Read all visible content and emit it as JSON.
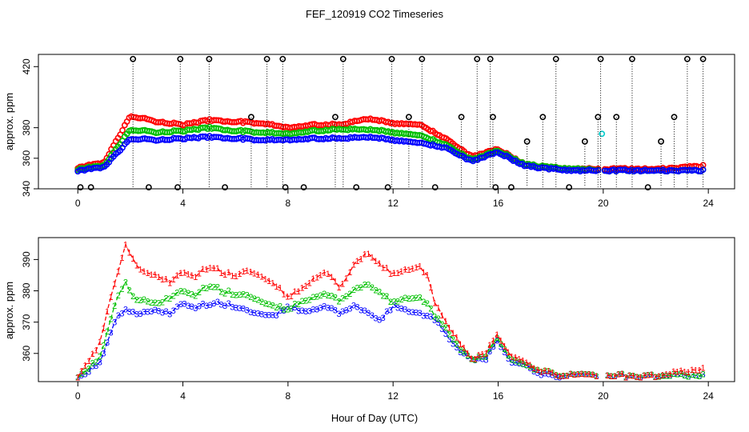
{
  "chart_data": [
    {
      "type": "scatter",
      "panel": "top",
      "title": "FEF_120919  CO2 Timeseries",
      "xlabel": "",
      "ylabel": "approx. ppm",
      "xlim": [
        -1.5,
        25
      ],
      "ylim": [
        340,
        428
      ],
      "xticks": [
        0,
        4,
        8,
        12,
        16,
        20,
        24
      ],
      "yticks": [
        340,
        360,
        380,
        420
      ],
      "marker": "circle",
      "colors": {
        "black": "#000000",
        "red": "#ff0000",
        "green": "#00c000",
        "blue": "#0000ff",
        "cyan": "#00cccc"
      },
      "series": [
        {
          "name": "black",
          "note": "outlier markers with dotted drop lines to baseline",
          "x": [
            0.1,
            0.5,
            2.1,
            2.7,
            3.8,
            3.9,
            5.0,
            5.6,
            6.6,
            7.2,
            7.8,
            7.9,
            8.6,
            9.8,
            10.1,
            10.6,
            11.8,
            11.95,
            12.6,
            13.1,
            13.6,
            14.6,
            15.2,
            15.7,
            15.8,
            15.9,
            16.5,
            17.1,
            17.7,
            18.2,
            18.7,
            19.3,
            19.8,
            19.9,
            20.5,
            21.1,
            21.7,
            22.2,
            22.7,
            23.2,
            23.8
          ],
          "y": [
            341,
            341,
            425,
            341,
            341,
            425,
            425,
            341,
            387,
            425,
            425,
            341,
            341,
            387,
            425,
            341,
            341,
            425,
            387,
            425,
            341,
            387,
            425,
            425,
            387,
            341,
            341,
            371,
            387,
            425,
            341,
            371,
            387,
            425,
            387,
            425,
            341,
            371,
            387,
            425,
            425
          ]
        },
        {
          "name": "red",
          "x": [
            0,
            1,
            2,
            3,
            4,
            5,
            6,
            7,
            8,
            9,
            10,
            11,
            12,
            13,
            14,
            15,
            16,
            17,
            18,
            19,
            20,
            21,
            22,
            23,
            23.8
          ],
          "y": [
            354,
            357,
            388,
            384,
            382,
            385,
            384,
            383,
            380,
            382,
            382,
            386,
            383,
            382,
            373,
            361,
            366,
            356,
            354,
            353,
            353,
            353,
            353,
            354,
            355
          ]
        },
        {
          "name": "green",
          "x": [
            0,
            1,
            2,
            3,
            4,
            5,
            6,
            7,
            8,
            9,
            10,
            11,
            12,
            13,
            14,
            15,
            16,
            17,
            18,
            19,
            20,
            21,
            22,
            23,
            23.8
          ],
          "y": [
            353,
            355,
            379,
            377,
            378,
            380,
            378,
            377,
            376,
            378,
            379,
            379,
            377,
            375,
            369,
            359,
            365,
            356,
            354,
            353,
            352,
            352,
            352,
            352,
            352
          ]
        },
        {
          "name": "blue",
          "x": [
            0,
            1,
            2,
            3,
            4,
            5,
            6,
            7,
            8,
            9,
            10,
            11,
            12,
            13,
            14,
            15,
            16,
            17,
            18,
            19,
            20,
            21,
            22,
            23,
            23.8
          ],
          "y": [
            352,
            354,
            373,
            372,
            373,
            374,
            373,
            372,
            372,
            373,
            373,
            374,
            372,
            370,
            367,
            358,
            364,
            355,
            353,
            352,
            352,
            352,
            352,
            352,
            352
          ]
        },
        {
          "name": "cyan",
          "x": [
            19.95
          ],
          "y": [
            376
          ]
        }
      ]
    },
    {
      "type": "line",
      "panel": "bottom",
      "title": "",
      "xlabel": "Hour of Day (UTC)",
      "ylabel": "approx. ppm",
      "xlim": [
        -1.5,
        25
      ],
      "ylim": [
        351,
        397
      ],
      "xticks": [
        0,
        4,
        8,
        12,
        16,
        20,
        24
      ],
      "yticks": [
        360,
        370,
        380,
        390
      ],
      "marker": "series number glyph",
      "series": [
        {
          "name": "1",
          "color": "#ff0000",
          "x": [
            0,
            0.3,
            0.6,
            0.9,
            1.2,
            1.5,
            1.8,
            2.1,
            2.5,
            3.0,
            3.5,
            4.0,
            4.5,
            5.0,
            5.5,
            6.0,
            6.5,
            7.0,
            7.5,
            8.0,
            8.5,
            9.0,
            9.5,
            10.0,
            10.5,
            11.0,
            11.5,
            12.0,
            12.5,
            13.0,
            13.3,
            13.6,
            14.0,
            14.5,
            15.0,
            15.5,
            16.0,
            16.5,
            17.0,
            17.5,
            18.0,
            18.5,
            19.0,
            19.5,
            19.8,
            20.2,
            21.0,
            22.0,
            23.0,
            23.8
          ],
          "y": [
            353,
            357,
            360,
            365,
            377,
            385,
            395,
            390,
            386,
            385,
            383,
            386,
            385,
            388,
            386,
            385,
            387,
            385,
            382,
            378,
            381,
            384,
            386,
            381,
            388,
            392,
            389,
            385,
            387,
            388,
            385,
            376,
            370,
            364,
            358,
            360,
            366,
            359,
            357,
            355,
            354,
            353,
            353,
            353,
            353,
            353,
            353,
            353,
            354,
            355
          ]
        },
        {
          "name": "2",
          "color": "#00c000",
          "x": [
            0,
            0.3,
            0.6,
            0.9,
            1.2,
            1.5,
            1.8,
            2.1,
            2.5,
            3.0,
            3.5,
            4.0,
            4.5,
            5.0,
            5.5,
            6.0,
            6.5,
            7.0,
            7.5,
            8.0,
            8.5,
            9.0,
            9.5,
            10.0,
            10.5,
            11.0,
            11.5,
            12.0,
            12.5,
            13.0,
            13.3,
            13.6,
            14.0,
            14.5,
            15.0,
            15.5,
            16.0,
            16.5,
            17.0,
            17.5,
            18.0,
            18.5,
            19.0,
            19.5,
            19.8,
            20.2,
            21.0,
            22.0,
            23.0,
            23.8
          ],
          "y": [
            353,
            355,
            357,
            360,
            370,
            378,
            383,
            378,
            377,
            376,
            378,
            380,
            379,
            382,
            380,
            379,
            379,
            377,
            375,
            374,
            377,
            378,
            379,
            377,
            380,
            382,
            380,
            376,
            378,
            378,
            376,
            372,
            368,
            362,
            358,
            359,
            365,
            358,
            356,
            355,
            354,
            353,
            353,
            353,
            353,
            353,
            353,
            353,
            353,
            353
          ]
        },
        {
          "name": "3",
          "color": "#0000ff",
          "x": [
            0,
            0.3,
            0.6,
            0.9,
            1.2,
            1.5,
            1.8,
            2.1,
            2.5,
            3.0,
            3.5,
            4.0,
            4.5,
            5.0,
            5.5,
            6.0,
            6.5,
            7.0,
            7.5,
            8.0,
            8.5,
            9.0,
            9.5,
            10.0,
            10.5,
            11.0,
            11.5,
            12.0,
            12.5,
            13.0,
            13.3,
            13.6,
            14.0,
            14.5,
            15.0,
            15.5,
            16.0,
            16.5,
            17.0,
            17.5,
            18.0,
            18.5,
            19.0,
            19.5,
            19.8,
            20.2,
            21.0,
            22.0,
            23.0,
            23.8
          ],
          "y": [
            353,
            354,
            356,
            358,
            366,
            372,
            374,
            373,
            373,
            374,
            373,
            376,
            375,
            376,
            376,
            375,
            374,
            373,
            372,
            375,
            374,
            374,
            375,
            373,
            375,
            373,
            371,
            375,
            374,
            373,
            372,
            371,
            366,
            361,
            358,
            358,
            364,
            357,
            356,
            354,
            353,
            353,
            353,
            353,
            353,
            353,
            353,
            353,
            353,
            353
          ]
        }
      ]
    }
  ]
}
